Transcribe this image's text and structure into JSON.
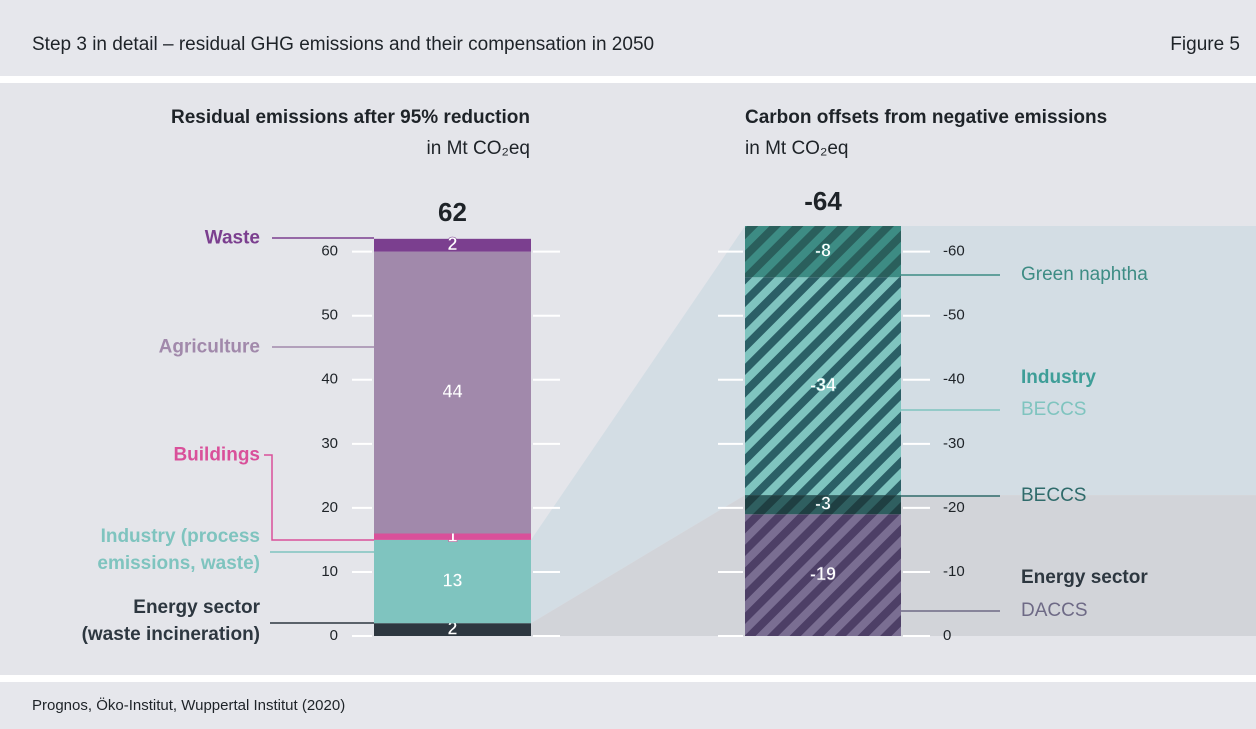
{
  "header": {
    "title": "Step 3 in detail – residual GHG emissions and their compensation in 2050",
    "figure": "Figure 5"
  },
  "source": "Prognos, Öko-Institut, Wuppertal Institut (2020)",
  "chart_data": [
    {
      "type": "stacked_bar",
      "title": "Residual emissions after 95% reduction",
      "subtitle": "in Mt CO₂eq",
      "total": 62,
      "ylim": [
        0,
        64
      ],
      "yticks": [
        0,
        10,
        20,
        30,
        40,
        50,
        60
      ],
      "series": [
        {
          "name": "Energy sector\n(waste incineration)",
          "color": "#2d3740",
          "label_color": "#2d3740",
          "values": [
            2
          ]
        },
        {
          "name": "Industry (process\nemissions, waste)",
          "color": "#7fc4bf",
          "label_color": "#7fc4bf",
          "values": [
            13
          ]
        },
        {
          "name": "Buildings",
          "color": "#d9509a",
          "label_color": "#d9509a",
          "values": [
            1
          ]
        },
        {
          "name": "Agriculture",
          "color": "#a189ab",
          "label_color": "#a189ab",
          "values": [
            44
          ]
        },
        {
          "name": "Waste",
          "color": "#7b3f8f",
          "label_color": "#7b3f8f",
          "values": [
            2
          ]
        }
      ]
    },
    {
      "type": "stacked_bar",
      "title": "Carbon offsets from negative emissions",
      "subtitle": "in Mt CO₂eq",
      "total": -64,
      "ylim": [
        0,
        -64
      ],
      "yticks": [
        0,
        -10,
        -20,
        -30,
        -40,
        -50,
        -60
      ],
      "series": [
        {
          "name": "DACCS",
          "group": "Energy sector",
          "group_color": "#2d3740",
          "color": "#7a6e92",
          "hatch_color": "#4d3f66",
          "label_color": "#6e6a86",
          "values": [
            -19
          ]
        },
        {
          "name": "BECCS",
          "color": "#2f5f60",
          "hatch_color": "#1f3f42",
          "label_color": "#2f6b6b",
          "values": [
            -3
          ]
        },
        {
          "name": "BECCS",
          "group": "Industry",
          "group_color": "#3e9e98",
          "color": "#7fc4bf",
          "hatch_color": "#2b5f66",
          "label_color": "#7fc4bf",
          "values": [
            -34
          ]
        },
        {
          "name": "Green naphtha",
          "color": "#3d8c84",
          "hatch_color": "#2a5f5c",
          "label_color": "#3d8c84",
          "values": [
            -8
          ]
        }
      ]
    }
  ]
}
